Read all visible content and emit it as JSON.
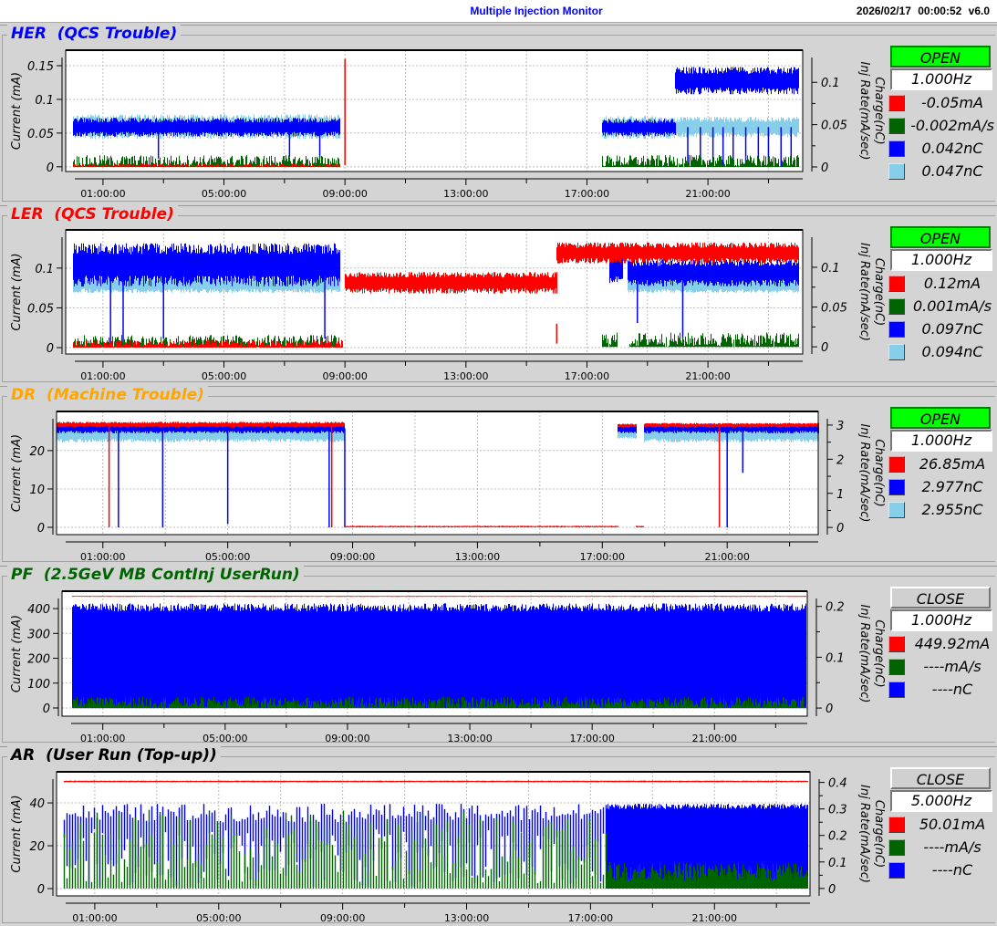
{
  "header": {
    "title": "Multiple Injection Monitor",
    "timestamp": "2026/02/17 00:00:52",
    "version": "v6.0"
  },
  "panels": [
    {
      "name": "HER",
      "status_text": "(QCS Trouble)",
      "title_color": "#0000ff",
      "gate": {
        "label": "OPEN",
        "state": "open"
      },
      "rate": "1.000Hz",
      "readouts": [
        {
          "color": "#ff0000",
          "value": "-0.05mA"
        },
        {
          "color": "#006400",
          "value": "-0.002mA/s"
        },
        {
          "color": "#0000ff",
          "value": "0.042nC"
        },
        {
          "color": "#87ceeb",
          "value": "0.047nC"
        }
      ]
    },
    {
      "name": "LER",
      "status_text": "(QCS Trouble)",
      "title_color": "#ff0000",
      "gate": {
        "label": "OPEN",
        "state": "open"
      },
      "rate": "1.000Hz",
      "readouts": [
        {
          "color": "#ff0000",
          "value": "0.12mA"
        },
        {
          "color": "#006400",
          "value": "0.001mA/s"
        },
        {
          "color": "#0000ff",
          "value": "0.097nC"
        },
        {
          "color": "#87ceeb",
          "value": "0.094nC"
        }
      ]
    },
    {
      "name": "DR",
      "status_text": "(Machine Trouble)",
      "title_color": "#ffa500",
      "gate": {
        "label": "OPEN",
        "state": "open"
      },
      "rate": "1.000Hz",
      "readouts": [
        {
          "color": "#ff0000",
          "value": "26.85mA"
        },
        {
          "color": "#0000ff",
          "value": "2.977nC"
        },
        {
          "color": "#87ceeb",
          "value": "2.955nC"
        }
      ]
    },
    {
      "name": "PF",
      "status_text": "(2.5GeV MB ContInj UserRun)",
      "title_color": "#006400",
      "gate": {
        "label": "CLOSE",
        "state": "close"
      },
      "rate": "1.000Hz",
      "readouts": [
        {
          "color": "#ff0000",
          "value": "449.92mA"
        },
        {
          "color": "#006400",
          "value": "----mA/s"
        },
        {
          "color": "#0000ff",
          "value": "----nC"
        }
      ]
    },
    {
      "name": "AR",
      "status_text": "(User Run (Top-up))",
      "title_color": "#000000",
      "gate": {
        "label": "CLOSE",
        "state": "close"
      },
      "rate": "5.000Hz",
      "readouts": [
        {
          "color": "#ff0000",
          "value": "50.01mA"
        },
        {
          "color": "#006400",
          "value": "----mA/s"
        },
        {
          "color": "#0000ff",
          "value": "----nC"
        }
      ]
    }
  ],
  "chart_data": [
    {
      "type": "line",
      "ylabel": "Current (mA)",
      "ylabel_right": [
        "Charge(nC)",
        "Inj Rate(mA/sec)"
      ],
      "grid": true,
      "xlim": [
        "2026/02/15 23:46",
        "2026/02/17 00:08"
      ],
      "xticks": [
        "01:00:00",
        "05:00:00",
        "09:00:00",
        "13:00:00",
        "17:00:00",
        "21:00:00"
      ],
      "ylim_left": [
        -0.007,
        0.173
      ],
      "yticks_left": [
        "0",
        "0.05",
        "0.1",
        "0.15"
      ],
      "ylim_right": [
        -0.0054,
        0.138
      ],
      "yticks_right": [
        "0",
        "0.05",
        "0.1"
      ],
      "series": [
        {
          "color": "#87ceeb",
          "axis": "right",
          "segments": [
            {
              "from": "00:00",
              "to": "08:49",
              "min": 0.033,
              "max": 0.062,
              "style": "band"
            },
            {
              "from": "17:30",
              "to": "19:55",
              "min": 0.033,
              "max": 0.06,
              "style": "band"
            },
            {
              "from": "19:55",
              "to": "24:00",
              "min": 0.035,
              "max": 0.059,
              "style": "band"
            }
          ]
        },
        {
          "color": "#0000ff",
          "axis": "right",
          "segments": [
            {
              "from": "00:00",
              "to": "08:49",
              "min": 0.036,
              "max": 0.058,
              "style": "band"
            },
            {
              "from": "17:30",
              "to": "19:55",
              "min": 0.036,
              "max": 0.057,
              "style": "band"
            },
            {
              "from": "19:55",
              "to": "24:00",
              "min": 0.086,
              "max": 0.118,
              "style": "band"
            }
          ],
          "excursions": [
            {
              "at": "02:50",
              "value": 0.01
            },
            {
              "at": "07:10",
              "value": 0.012
            },
            {
              "at": "08:10",
              "value": 0.01
            },
            {
              "at": "20:20",
              "value": 0
            },
            {
              "at": "20:45",
              "value": 0
            },
            {
              "at": "21:10",
              "value": 0
            },
            {
              "at": "21:30",
              "value": 0
            },
            {
              "at": "21:50",
              "value": 0
            },
            {
              "at": "22:15",
              "value": 0
            },
            {
              "at": "22:40",
              "value": 0
            },
            {
              "at": "23:00",
              "value": 0
            },
            {
              "at": "23:25",
              "value": 0
            },
            {
              "at": "23:45",
              "value": 0
            }
          ]
        },
        {
          "color": "#006400",
          "axis": "right",
          "segments": [
            {
              "from": "00:00",
              "to": "08:49",
              "min": 0,
              "max": 0.014,
              "style": "fill"
            },
            {
              "from": "17:30",
              "to": "24:00",
              "min": 0,
              "max": 0.014,
              "style": "fill"
            }
          ]
        },
        {
          "color": "#ff0000",
          "axis": "left",
          "segments": [
            {
              "from": "00:00",
              "to": "08:49",
              "min": 0,
              "max": 0.005,
              "style": "fill"
            }
          ],
          "excursions": [
            {
              "at": "09:00",
              "value": 0.16
            }
          ]
        }
      ]
    },
    {
      "type": "line",
      "ylabel": "Current (mA)",
      "ylabel_right": [
        "Charge(nC)",
        "Inj Rate(mA/sec)"
      ],
      "grid": true,
      "xlim": [
        "2026/02/15 23:46",
        "2026/02/17 00:08"
      ],
      "xticks": [
        "01:00:00",
        "05:00:00",
        "09:00:00",
        "13:00:00",
        "17:00:00",
        "21:00:00"
      ],
      "ylim_left": [
        -0.008,
        0.148
      ],
      "yticks_left": [
        "0",
        "0.05",
        "0.1"
      ],
      "ylim_right": [
        -0.009,
        0.147
      ],
      "yticks_right": [
        "0",
        "0.05",
        "0.1"
      ],
      "series": [
        {
          "color": "#87ceeb",
          "axis": "right",
          "segments": [
            {
              "from": "00:00",
              "to": "08:50",
              "min": 0.068,
              "max": 0.088,
              "style": "band"
            },
            {
              "from": "18:20",
              "to": "24:00",
              "min": 0.068,
              "max": 0.085,
              "style": "band"
            }
          ]
        },
        {
          "color": "#0000ff",
          "axis": "right",
          "segments": [
            {
              "from": "00:00",
              "to": "08:50",
              "min": 0.076,
              "max": 0.13,
              "style": "band"
            },
            {
              "from": "17:45",
              "to": "18:10",
              "min": 0.08,
              "max": 0.12,
              "style": "band"
            },
            {
              "from": "18:20",
              "to": "24:00",
              "min": 0.076,
              "max": 0.11,
              "style": "band"
            }
          ],
          "excursions": [
            {
              "at": "01:15",
              "value": 0
            },
            {
              "at": "01:40",
              "value": 0
            },
            {
              "at": "03:00",
              "value": 0.01
            },
            {
              "at": "08:20",
              "value": 0.01
            },
            {
              "at": "18:40",
              "value": 0.03
            },
            {
              "at": "20:10",
              "value": 0.01
            }
          ]
        },
        {
          "color": "#006400",
          "axis": "right",
          "segments": [
            {
              "from": "00:00",
              "to": "08:50",
              "min": 0,
              "max": 0.015,
              "style": "fill"
            },
            {
              "from": "17:30",
              "to": "18:00",
              "min": 0,
              "max": 0.018,
              "style": "fill"
            },
            {
              "from": "18:25",
              "to": "24:00",
              "min": 0,
              "max": 0.018,
              "style": "fill"
            }
          ]
        },
        {
          "color": "#ff0000",
          "axis": "left",
          "segments": [
            {
              "from": "00:00",
              "to": "08:55",
              "min": 0,
              "max": 0.01,
              "style": "fill"
            },
            {
              "from": "09:00",
              "to": "16:00",
              "min": 0.068,
              "max": 0.095,
              "style": "band"
            },
            {
              "from": "16:00",
              "to": "24:00",
              "min": 0.106,
              "max": 0.132,
              "style": "band"
            }
          ],
          "excursions": [
            {
              "at": "16:00",
              "value": 0.03
            }
          ]
        }
      ]
    },
    {
      "type": "line",
      "ylabel": "Current (mA)",
      "ylabel_right": [
        "Charge(nC)",
        "Inj Rate(mA/sec)"
      ],
      "grid": true,
      "xlim": [
        "2026/02/15 23:31",
        "2026/02/16 23:55"
      ],
      "xticks": [
        "01:00:00",
        "05:00:00",
        "09:00:00",
        "13:00:00",
        "17:00:00",
        "21:00:00"
      ],
      "ylim_left": [
        -1.9,
        30.2
      ],
      "yticks_left": [
        "0",
        "10",
        "20"
      ],
      "ylim_right": [
        -0.21,
        3.4
      ],
      "yticks_right": [
        "0",
        "1",
        "2",
        "3"
      ],
      "series": [
        {
          "color": "#87ceeb",
          "axis": "right",
          "segments": [
            {
              "from": "23:31",
              "to": "08:45",
              "min": 2.5,
              "max": 2.9,
              "style": "band"
            },
            {
              "from": "17:30",
              "to": "18:05",
              "min": 2.6,
              "max": 2.9,
              "style": "band"
            },
            {
              "from": "18:20",
              "to": "23:55",
              "min": 2.5,
              "max": 2.9,
              "style": "band"
            }
          ]
        },
        {
          "color": "#0000ff",
          "axis": "right",
          "segments": [
            {
              "from": "23:31",
              "to": "08:45",
              "min": 2.76,
              "max": 3.05,
              "style": "band"
            },
            {
              "from": "17:30",
              "to": "18:05",
              "min": 2.76,
              "max": 3.0,
              "style": "band"
            },
            {
              "from": "18:20",
              "to": "23:55",
              "min": 2.76,
              "max": 3.05,
              "style": "band"
            }
          ],
          "excursions": [
            {
              "at": "01:30",
              "value": 0
            },
            {
              "at": "02:55",
              "value": 0
            },
            {
              "at": "05:00",
              "value": 0.1
            },
            {
              "at": "08:15",
              "value": 0
            },
            {
              "at": "08:45",
              "value": 0
            },
            {
              "at": "21:00",
              "value": 0
            },
            {
              "at": "21:30",
              "value": 1.6
            }
          ]
        },
        {
          "color": "#ff0000",
          "axis": "left",
          "segments": [
            {
              "from": "23:31",
              "to": "08:45",
              "min": 26,
              "max": 27.5,
              "style": "band"
            },
            {
              "from": "08:45",
              "to": "17:30",
              "min": 0,
              "max": 0.4,
              "style": "band"
            },
            {
              "from": "17:30",
              "to": "18:05",
              "min": 26,
              "max": 27,
              "style": "band"
            },
            {
              "from": "18:05",
              "to": "18:20",
              "min": 0,
              "max": 0.4,
              "style": "band"
            },
            {
              "from": "18:20",
              "to": "23:55",
              "min": 26,
              "max": 27.2,
              "style": "band"
            }
          ],
          "excursions": [
            {
              "at": "01:12",
              "value": 0
            },
            {
              "at": "08:20",
              "value": 0
            },
            {
              "at": "20:45",
              "value": 0
            }
          ]
        }
      ]
    },
    {
      "type": "area",
      "ylabel": "Current (mA)",
      "ylabel_right": [
        "Charge(nC)",
        "Inj Rate(mA/sec)"
      ],
      "grid": true,
      "xlim": [
        "2026/02/15 23:40",
        "2026/02/17 00:02"
      ],
      "xticks": [
        "01:00:00",
        "05:00:00",
        "09:00:00",
        "13:00:00",
        "17:00:00",
        "21:00:00"
      ],
      "ylim_left": [
        -33,
        470
      ],
      "yticks_left": [
        "0",
        "100",
        "200",
        "300",
        "400"
      ],
      "ylim_right": [
        -0.016,
        0.23
      ],
      "yticks_right": [
        "0",
        "0.1",
        "0.2"
      ],
      "series": [
        {
          "color": "#0000ff",
          "axis": "right",
          "segments": [
            {
              "from": "00:00",
              "to": "24:00",
              "min": 0.19,
              "max": 0.206,
              "style": "fill"
            }
          ],
          "excursions": [
            {
              "at": "04:40",
              "value": 0.15
            },
            {
              "at": "05:00",
              "value": 0.05
            },
            {
              "at": "15:10",
              "value": 0.12
            },
            {
              "at": "15:30",
              "value": 0.1
            },
            {
              "at": "20:50",
              "value": 0.14
            }
          ]
        },
        {
          "color": "#006400",
          "axis": "right",
          "segments": [
            {
              "from": "00:00",
              "to": "24:00",
              "min": 0,
              "max": 0.022,
              "style": "fill"
            }
          ]
        },
        {
          "color": "#ff0000",
          "axis": "left",
          "segments": [
            {
              "from": "00:00",
              "to": "24:00",
              "min": 447,
              "max": 451,
              "style": "band"
            }
          ]
        }
      ]
    },
    {
      "type": "bar",
      "ylabel": "Current (mA)",
      "ylabel_right": [
        "Charge(nC)",
        "Inj Rate(mA/sec)"
      ],
      "grid": true,
      "xlim": [
        "2026/02/15 23:46",
        "2026/02/17 00:05"
      ],
      "xticks": [
        "01:00:00",
        "05:00:00",
        "09:00:00",
        "13:00:00",
        "17:00:00",
        "21:00:00"
      ],
      "ylim_left": [
        -3.4,
        54.5
      ],
      "yticks_left": [
        "0",
        "20",
        "40"
      ],
      "ylim_right": [
        -0.028,
        0.44
      ],
      "yticks_right": [
        "0",
        "0.1",
        "0.2",
        "0.3",
        "0.4"
      ],
      "series": [
        {
          "color": "#0000ff",
          "axis": "right",
          "segments": [
            {
              "from": "00:00",
              "to": "17:30",
              "min": 0.25,
              "max": 0.32,
              "style": "bars"
            },
            {
              "from": "17:30",
              "to": "24:00",
              "min": 0.3,
              "max": 0.32,
              "style": "fill"
            }
          ]
        },
        {
          "color": "#006400",
          "axis": "right",
          "segments": [
            {
              "from": "00:00",
              "to": "17:30",
              "min": 0.02,
              "max": 0.3,
              "style": "bars"
            },
            {
              "from": "17:30",
              "to": "24:00",
              "min": 0.03,
              "max": 0.1,
              "style": "fill"
            }
          ]
        },
        {
          "color": "#ff0000",
          "axis": "left",
          "segments": [
            {
              "from": "00:00",
              "to": "24:00",
              "min": 49.6,
              "max": 50.4,
              "style": "band"
            }
          ]
        }
      ]
    }
  ]
}
